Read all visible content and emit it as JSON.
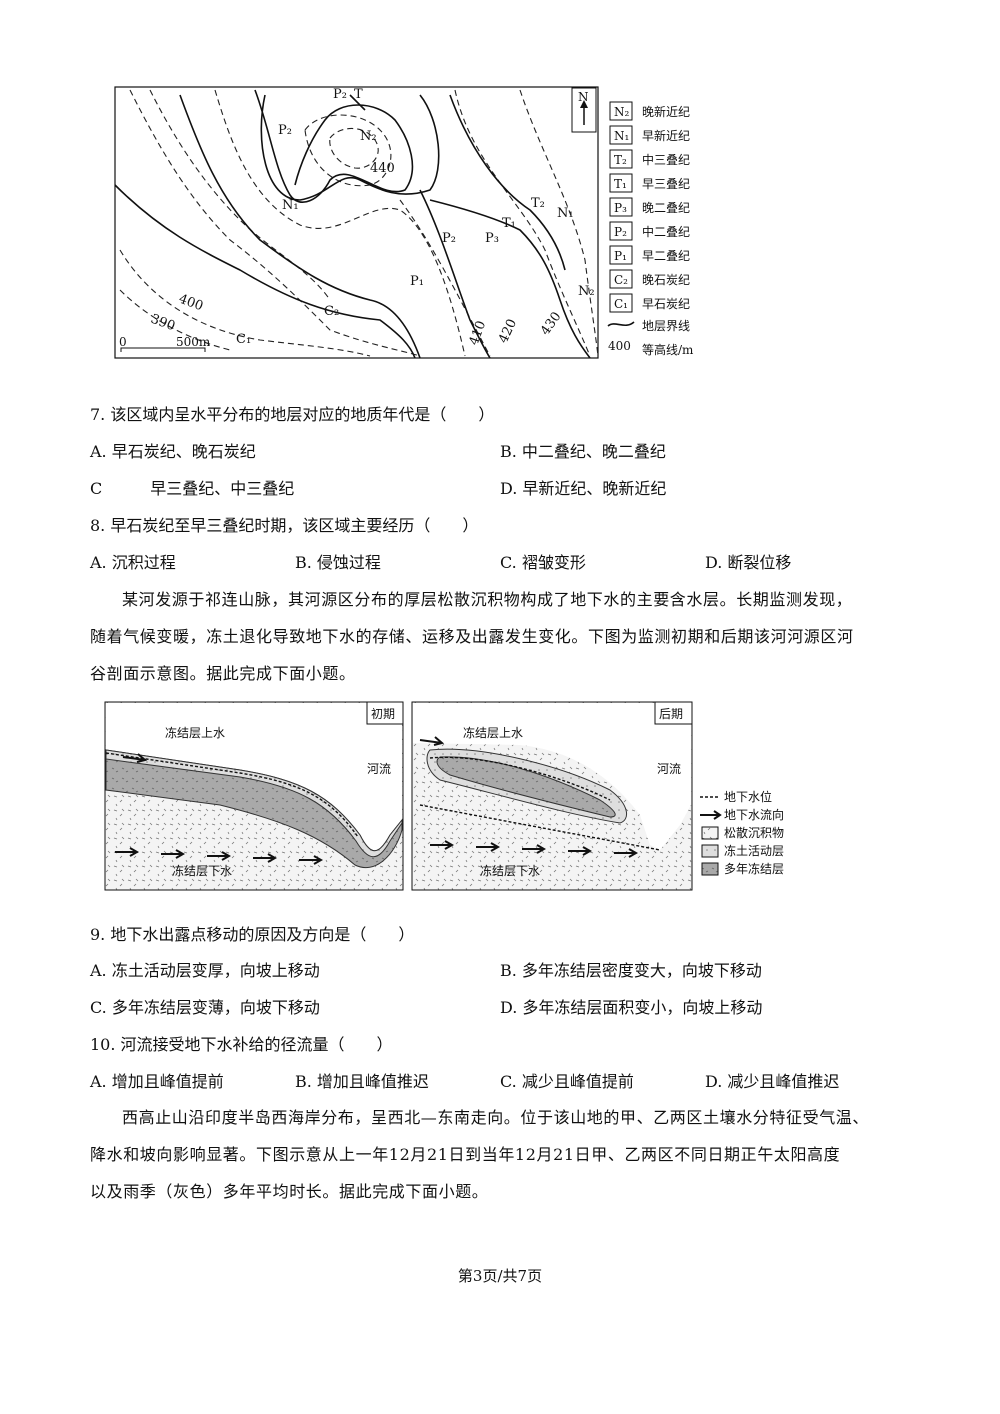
{
  "figure1": {
    "labels": [
      "P₂",
      "T",
      "P₂",
      "N₂",
      "440",
      "N₁",
      "T₂",
      "T₁",
      "N₁",
      "P₂",
      "P₃",
      "P₁",
      "N₂",
      "400",
      "390",
      "C₂",
      "C₁",
      "410",
      "420",
      "430"
    ],
    "north": "N",
    "scale": [
      "0",
      "500m"
    ],
    "legend": [
      {
        "code": "N₂",
        "name": "晚新近纪"
      },
      {
        "code": "N₁",
        "name": "早新近纪"
      },
      {
        "code": "T₂",
        "name": "中三叠纪"
      },
      {
        "code": "T₁",
        "name": "早三叠纪"
      },
      {
        "code": "P₃",
        "name": "晚二叠纪"
      },
      {
        "code": "P₂",
        "name": "中二叠纪"
      },
      {
        "code": "P₁",
        "name": "早二叠纪"
      },
      {
        "code": "C₂",
        "name": "晚石炭纪"
      },
      {
        "code": "C₁",
        "name": "早石炭纪"
      }
    ],
    "legend_line": "地层界线",
    "legend_contour": {
      "value": "400",
      "name": "等高线/m"
    }
  },
  "questions": [
    {
      "stem": "7. 该区域内呈水平分布的地层对应的地质年代是（　　）",
      "options": [
        "A. 早石炭纪、晚石炭纪",
        "B. 中二叠纪、晚二叠纪",
        "C　　　早三叠纪、中三叠纪",
        "D. 早新近纪、晚新近纪"
      ]
    },
    {
      "stem": "8. 早石炭纪至早三叠纪时期，该区域主要经历（　　）",
      "options": [
        "A. 沉积过程",
        "B. 侵蚀过程",
        "C. 褶皱变形",
        "D. 断裂位移"
      ]
    },
    {
      "stem": "9. 地下水出露点移动的原因及方向是（　　）",
      "options": [
        "A. 冻土活动层变厚，向坡上移动",
        "B. 多年冻结层密度变大，向坡下移动",
        "C. 多年冻结层变薄，向坡下移动",
        "D. 多年冻结层面积变小，向坡上移动"
      ]
    },
    {
      "stem": "10. 河流接受地下水补给的径流量（　　）",
      "options": [
        "A. 增加且峰值提前",
        "B. 增加且峰值推迟",
        "C. 减少且峰值提前",
        "D. 减少且峰值推迟"
      ]
    }
  ],
  "passages": [
    [
      "某河发源于祁连山脉，其河源区分布的厚层松散沉积物构成了地下水的主要含水层。长期监测发现，",
      "随着气候变暖，冻土退化导致地下水的存储、运移及出露发生变化。下图为监测初期和后期该河河源区河",
      "谷剖面示意图。据此完成下面小题。"
    ],
    [
      "西高止山沿印度半岛西海岸分布，呈西北—东南走向。位于该山地的甲、乙两区土壤水分特征受气温、",
      "降水和坡向影响显著。下图示意从上一年12月21日到当年12月21日甲、乙两区不同日期正午太阳高度",
      "以及雨季（灰色）多年平均时长。据此完成下面小题。"
    ]
  ],
  "figure2": {
    "panels": [
      {
        "title": "初期",
        "labels": [
          "冻结层上水",
          "河流",
          "冻结层下水"
        ]
      },
      {
        "title": "后期",
        "labels": [
          "冻结层上水",
          "河流",
          "冻结层下水"
        ]
      }
    ],
    "legend": [
      "地下水位",
      "地下水流向",
      "松散沉积物",
      "冻土活动层",
      "多年冻结层"
    ]
  },
  "footer": "第3页/共7页"
}
